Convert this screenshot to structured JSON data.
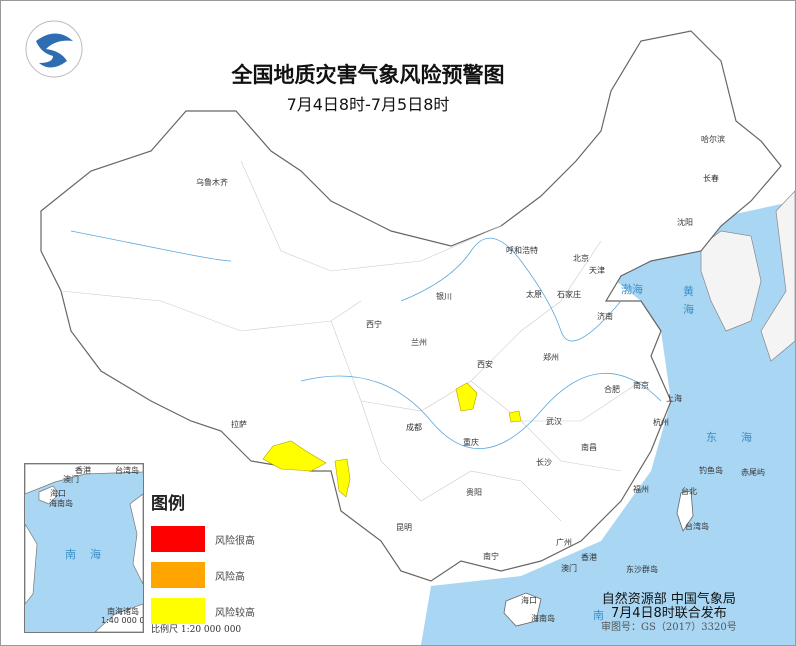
{
  "title": "全国地质灾害气象风险预警图",
  "subtitle": "7月4日8时-7月5日8时",
  "colors": {
    "sea": "#a9d6f3",
    "land": "#ffffff",
    "very_high": "#ff0000",
    "high": "#ffa500",
    "elevated": "#ffff00"
  },
  "logo": "meteorological-logo",
  "legend": {
    "title": "图例",
    "items": [
      {
        "label": "风险很高",
        "color": "#ff0000"
      },
      {
        "label": "风险高",
        "color": "#ffa500"
      },
      {
        "label": "风险较高",
        "color": "#ffff00"
      }
    ]
  },
  "scale": "比例尺    1:20 000 000",
  "inset": {
    "labels": [
      "香港",
      "台湾岛",
      "澳门",
      "海口",
      "海南岛",
      "南",
      "海",
      "南海诸岛",
      "1:40 000 000"
    ]
  },
  "cities": [
    "乌鲁木齐",
    "呼和浩特",
    "北京",
    "天津",
    "石家庄",
    "太原",
    "银川",
    "西宁",
    "兰州",
    "济南",
    "郑州",
    "西安",
    "合肥",
    "南京",
    "上海",
    "杭州",
    "武汉",
    "成都",
    "重庆",
    "长沙",
    "南昌",
    "贵阳",
    "昆明",
    "福州",
    "台北",
    "南宁",
    "广州",
    "香港",
    "澳门",
    "海口",
    "拉萨",
    "哈尔滨",
    "长春",
    "沈阳",
    "东沙群岛",
    "台湾岛",
    "钓鱼岛",
    "赤尾屿",
    "海南岛"
  ],
  "seas": [
    "渤海",
    "黄",
    "海",
    "东",
    "海",
    "南"
  ],
  "credit": {
    "line1": "自然资源部  中国气象局",
    "line2": "7月4日8时联合发布",
    "line3": "审图号：GS（2017）3320号"
  }
}
